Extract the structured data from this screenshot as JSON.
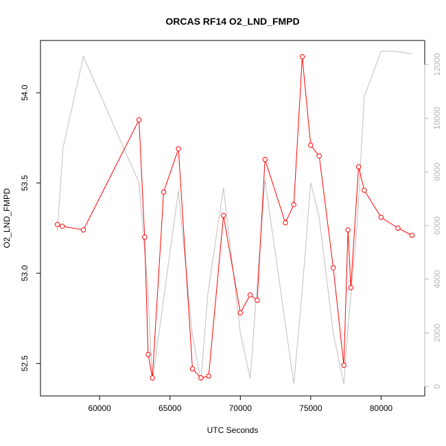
{
  "chart_data": {
    "type": "line",
    "title": "ORCAS RF14 O2_LND_FMPD",
    "xlabel": "UTC Seconds",
    "ylabel": "O2_LND_FMPD",
    "xlim": [
      55800,
      83100
    ],
    "ylim": [
      52.32,
      54.29
    ],
    "y2lim": [
      -350,
      12900
    ],
    "x_ticks": [
      60000,
      65000,
      70000,
      75000,
      80000
    ],
    "y_ticks": [
      52.5,
      53.0,
      53.5,
      54.0
    ],
    "y_tick_labels": [
      "52.5",
      "53.0",
      "53.5",
      "54.0"
    ],
    "y2_ticks": [
      0,
      2000,
      4000,
      6000,
      8000,
      10000,
      12000
    ],
    "grid": false,
    "legend": "none",
    "series": [
      {
        "axis": "left",
        "color": "#ff0000",
        "marker": "open-circle",
        "x": [
          57000,
          57350,
          58850,
          62800,
          63200,
          63450,
          63750,
          64550,
          65600,
          66600,
          67200,
          67750,
          68800,
          70000,
          70700,
          71200,
          71750,
          73200,
          73800,
          74400,
          75000,
          75600,
          76600,
          77350,
          77650,
          77850,
          78400,
          78800,
          80000,
          81200,
          82200
        ],
        "values": [
          53.27,
          53.26,
          53.24,
          53.85,
          53.2,
          52.55,
          52.42,
          53.45,
          53.69,
          52.47,
          52.42,
          52.43,
          53.32,
          52.78,
          52.88,
          52.85,
          53.63,
          53.28,
          53.38,
          54.2,
          53.71,
          53.65,
          53.03,
          52.49,
          53.24,
          52.92,
          53.59,
          53.46,
          53.31,
          53.25,
          53.21
        ]
      },
      {
        "axis": "right",
        "color": "#bebebe",
        "marker": "none",
        "x": [
          57000,
          57400,
          58850,
          62800,
          63400,
          63750,
          65600,
          66600,
          67200,
          67700,
          68800,
          70000,
          70700,
          71750,
          73800,
          74400,
          75000,
          75600,
          76600,
          77350,
          77650,
          78300,
          78800,
          80000,
          81000,
          82200
        ],
        "values": [
          5800,
          8900,
          12300,
          7600,
          3800,
          200,
          7300,
          1900,
          200,
          3500,
          7400,
          2000,
          300,
          7700,
          100,
          3600,
          7600,
          6300,
          2000,
          100,
          2200,
          6000,
          10800,
          12500,
          12500,
          12400
        ]
      }
    ]
  }
}
